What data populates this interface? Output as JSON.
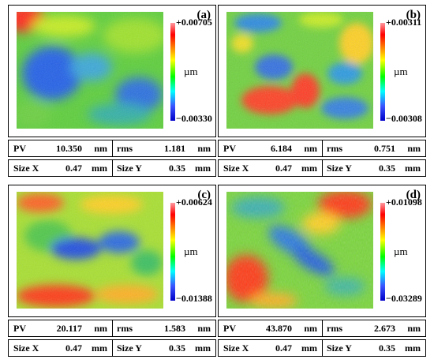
{
  "unit_label": "µm",
  "labels": {
    "pv": "PV",
    "rms": "rms",
    "size_x": "Size X",
    "size_y": "Size Y",
    "nm": "nm",
    "mm": "mm"
  },
  "panels": [
    {
      "tag": "(a)",
      "max": "+0.00705",
      "min": "−0.00330",
      "pv": "10.350",
      "rms": "1.181",
      "size_x": "0.47",
      "size_y": "0.35"
    },
    {
      "tag": "(b)",
      "max": "+0.00311",
      "min": "−0.00308",
      "pv": "6.184",
      "rms": "0.751",
      "size_x": "0.47",
      "size_y": "0.35"
    },
    {
      "tag": "(c)",
      "max": "+0.00624",
      "min": "−0.01388",
      "pv": "20.117",
      "rms": "1.583",
      "size_x": "0.47",
      "size_y": "0.35"
    },
    {
      "tag": "(d)",
      "max": "+0.01098",
      "min": "−0.03289",
      "pv": "43.870",
      "rms": "2.673",
      "size_x": "0.47",
      "size_y": "0.35"
    }
  ]
}
